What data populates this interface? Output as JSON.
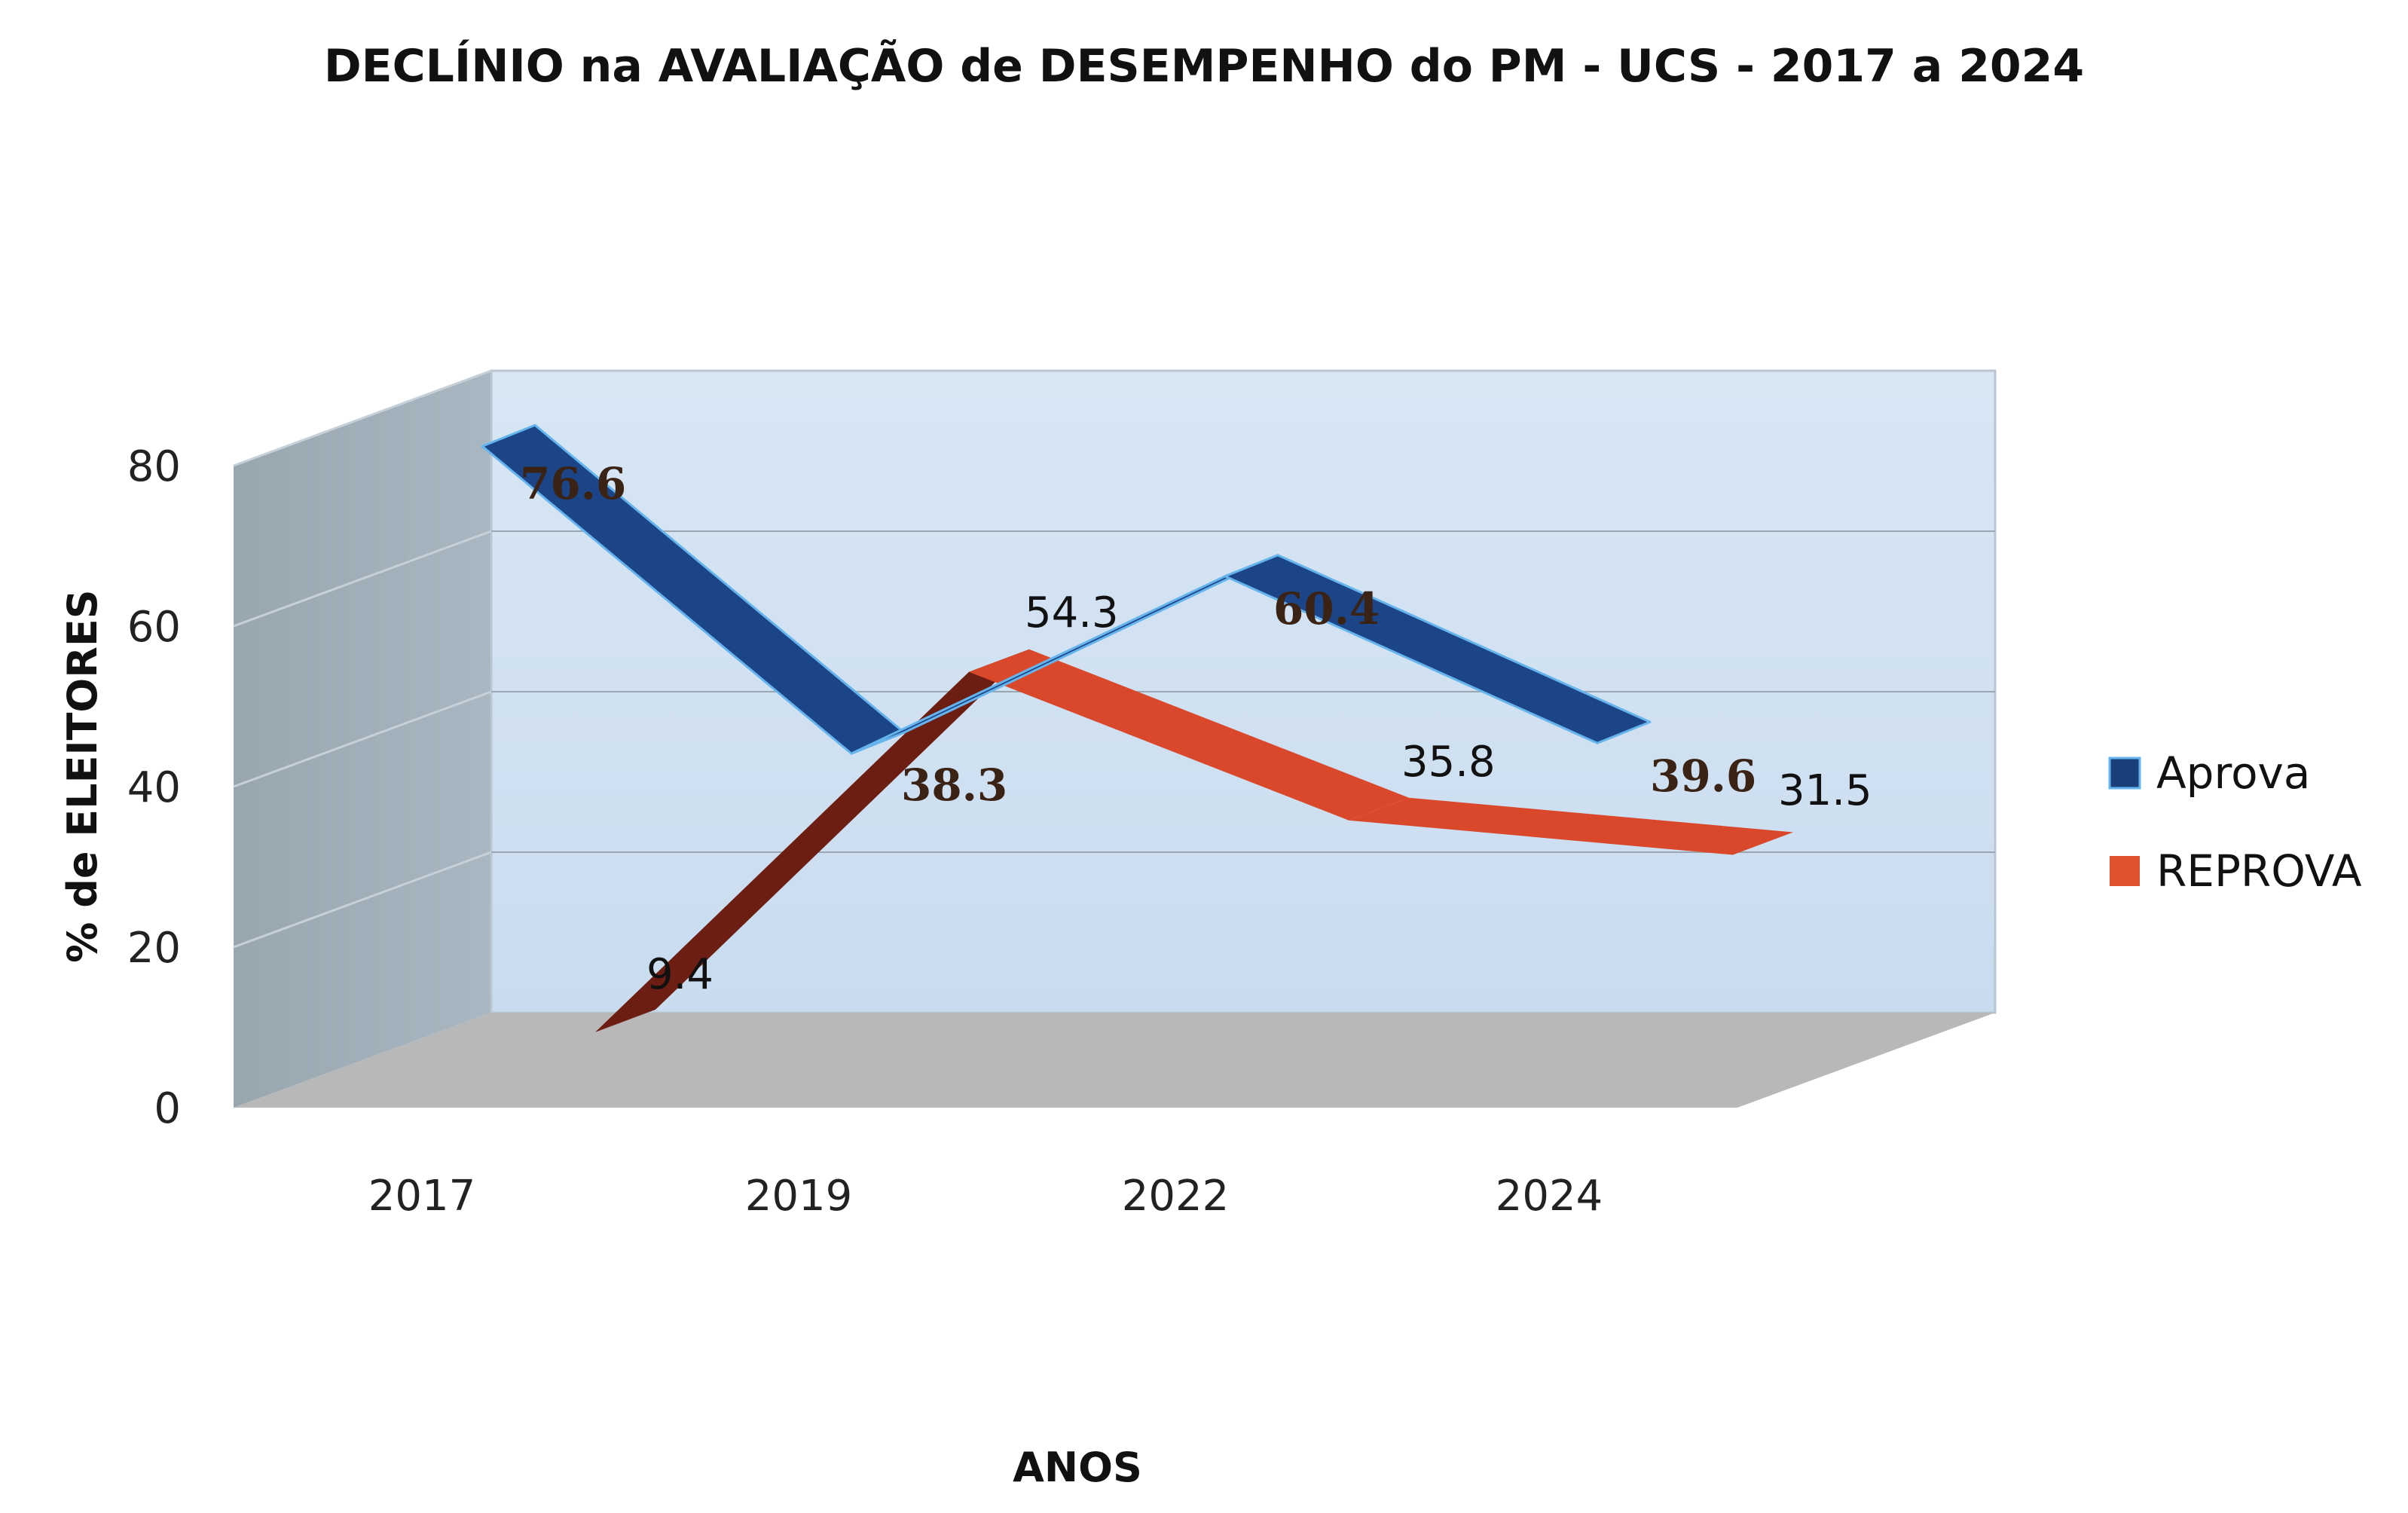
{
  "chart_data": {
    "type": "line",
    "title": "DECLÍNIO na AVALIAÇÃO de DESEMPENHO do PM - UCS - 2017 a 2024",
    "xlabel": "ANOS",
    "ylabel": "% de ELEITORES",
    "categories": [
      "2017",
      "2019",
      "2022",
      "2024"
    ],
    "ylim": [
      0,
      80
    ],
    "yticks": [
      "0",
      "20",
      "40",
      "60",
      "80"
    ],
    "grid": true,
    "legend_position": "right",
    "series": [
      {
        "name": "Aprova",
        "color": "#1b3f7a",
        "values": [
          76.6,
          38.3,
          60.4,
          39.6
        ],
        "labels": [
          "76.6",
          "38.3",
          "60.4",
          "39.6"
        ]
      },
      {
        "name": "REPROVA",
        "color": "#e0522c",
        "values": [
          9.4,
          54.3,
          35.8,
          31.5
        ],
        "labels": [
          "9.4",
          "54.3",
          "35.8",
          "31.5"
        ]
      }
    ]
  }
}
